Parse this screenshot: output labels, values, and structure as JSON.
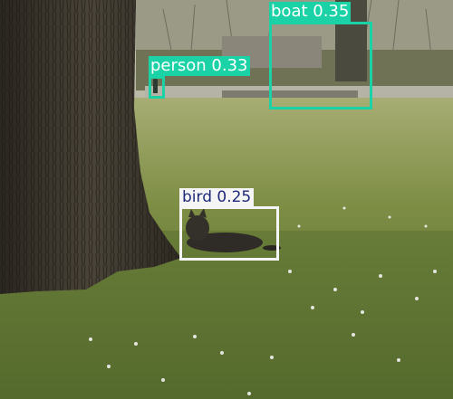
{
  "image": {
    "description_free": true
  },
  "detections": [
    {
      "label": "boat 0.35",
      "class": "boat",
      "score": 0.35,
      "color": "#1bd1a6",
      "text_color": "#ffffff"
    },
    {
      "label": "person 0.33",
      "class": "person",
      "score": 0.33,
      "color": "#1bd1a6",
      "text_color": "#ffffff"
    },
    {
      "label": "bird 0.25",
      "class": "bird",
      "score": 0.25,
      "color": "#f5f5f5",
      "text_color": "#1f2a7a"
    }
  ]
}
